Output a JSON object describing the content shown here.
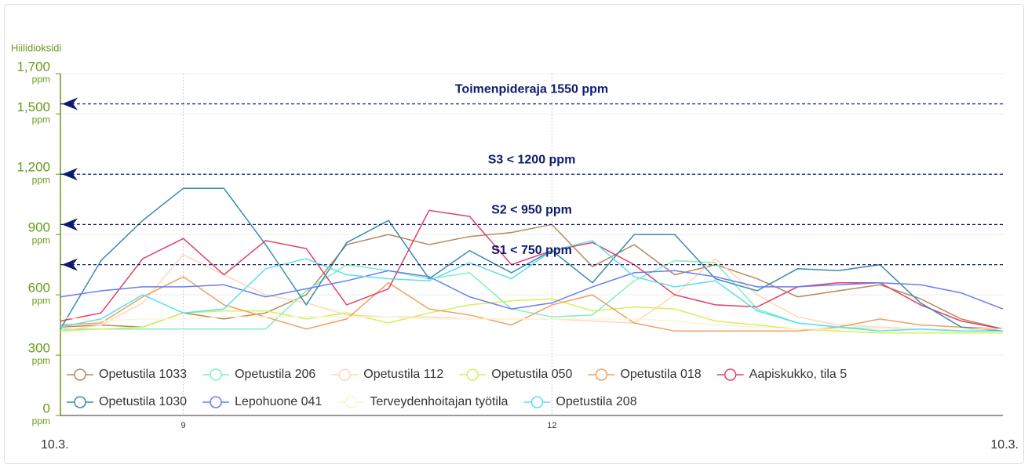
{
  "chart_data": {
    "type": "line",
    "y_label": "Hiilidioksidi",
    "y_unit": "ppm",
    "date_labels": [
      "10.3.",
      "10.3."
    ],
    "x": [
      8,
      8.33,
      8.67,
      9,
      9.33,
      9.67,
      10,
      10.33,
      10.67,
      11,
      11.33,
      11.67,
      12,
      12.33,
      12.67,
      13,
      13.33,
      13.67,
      14,
      14.33,
      14.67,
      15,
      15.33,
      15.67
    ],
    "xlim": [
      8,
      15.67
    ],
    "xticks": [
      9,
      12
    ],
    "ylim": [
      0,
      1700
    ],
    "yticks": [
      0,
      300,
      600,
      900,
      {
        "value": 1200,
        "label": "1,200"
      },
      {
        "value": 1500,
        "label": "1,500"
      },
      {
        "value": 1700,
        "label": "1,700"
      }
    ],
    "grid": true,
    "thresholds": [
      {
        "value": 1550,
        "label": "Toimenpideraja 1550 ppm"
      },
      {
        "value": 1200,
        "label": "S3 < 1200 ppm"
      },
      {
        "value": 950,
        "label": "S2 < 950 ppm"
      },
      {
        "value": 750,
        "label": "S1 < 750 ppm"
      }
    ],
    "threshold_color": "#0b1a70",
    "series": [
      {
        "name": "Opetustila 1033",
        "color": "#b5895a",
        "values": [
          440,
          450,
          440,
          510,
          480,
          510,
          600,
          850,
          900,
          850,
          890,
          910,
          950,
          740,
          850,
          700,
          750,
          680,
          590,
          620,
          650,
          580,
          480,
          430
        ]
      },
      {
        "name": "Opetustila 206",
        "color": "#7ff0c0",
        "values": [
          430,
          430,
          430,
          430,
          430,
          430,
          620,
          750,
          720,
          680,
          710,
          530,
          490,
          500,
          670,
          770,
          760,
          530,
          460,
          440,
          430,
          430,
          420,
          420
        ]
      },
      {
        "name": "Opetustila 112",
        "color": "#ffd7b5",
        "values": [
          420,
          450,
          560,
          800,
          700,
          600,
          560,
          500,
          490,
          490,
          480,
          480,
          480,
          470,
          460,
          600,
          780,
          600,
          490,
          450,
          440,
          430,
          430,
          420
        ]
      },
      {
        "name": "Opetustila 050",
        "color": "#d4ef5a",
        "values": [
          420,
          430,
          440,
          510,
          520,
          520,
          480,
          510,
          460,
          510,
          550,
          570,
          580,
          520,
          540,
          530,
          470,
          450,
          430,
          420,
          410,
          410,
          410,
          410
        ]
      },
      {
        "name": "Opetustila 018",
        "color": "#f0a060",
        "values": [
          450,
          460,
          590,
          690,
          550,
          490,
          430,
          480,
          660,
          530,
          500,
          450,
          550,
          600,
          460,
          420,
          420,
          420,
          420,
          440,
          480,
          450,
          440,
          430
        ]
      },
      {
        "name": "Aapiskukko, tila 5",
        "color": "#e0406a",
        "values": [
          470,
          510,
          780,
          880,
          700,
          870,
          830,
          550,
          630,
          1020,
          990,
          750,
          820,
          860,
          750,
          600,
          550,
          540,
          640,
          660,
          660,
          550,
          470,
          430
        ]
      },
      {
        "name": "Opetustila 1030",
        "color": "#3a8ab5",
        "values": [
          430,
          770,
          970,
          1130,
          1130,
          850,
          550,
          860,
          970,
          680,
          820,
          710,
          820,
          660,
          900,
          900,
          680,
          620,
          730,
          720,
          750,
          560,
          440,
          420
        ]
      },
      {
        "name": "Lepohuone 041",
        "color": "#6a7ef0",
        "values": [
          590,
          620,
          640,
          640,
          650,
          590,
          630,
          670,
          720,
          690,
          590,
          530,
          560,
          640,
          710,
          720,
          690,
          640,
          640,
          650,
          660,
          650,
          610,
          530
        ]
      },
      {
        "name": "Terveydenhoitajan työtila",
        "color": "#fbf3d2",
        "values": [
          490,
          470,
          480,
          480,
          490,
          490,
          490,
          490,
          490,
          480,
          480,
          480,
          480,
          480,
          480,
          470,
          450,
          440,
          430,
          430,
          430,
          430,
          430,
          430
        ]
      },
      {
        "name": "Opetustila 208",
        "color": "#5ae0f0",
        "values": [
          440,
          480,
          600,
          510,
          530,
          730,
          780,
          700,
          680,
          670,
          760,
          680,
          820,
          870,
          690,
          640,
          670,
          520,
          460,
          440,
          420,
          430,
          420,
          420
        ]
      }
    ]
  }
}
